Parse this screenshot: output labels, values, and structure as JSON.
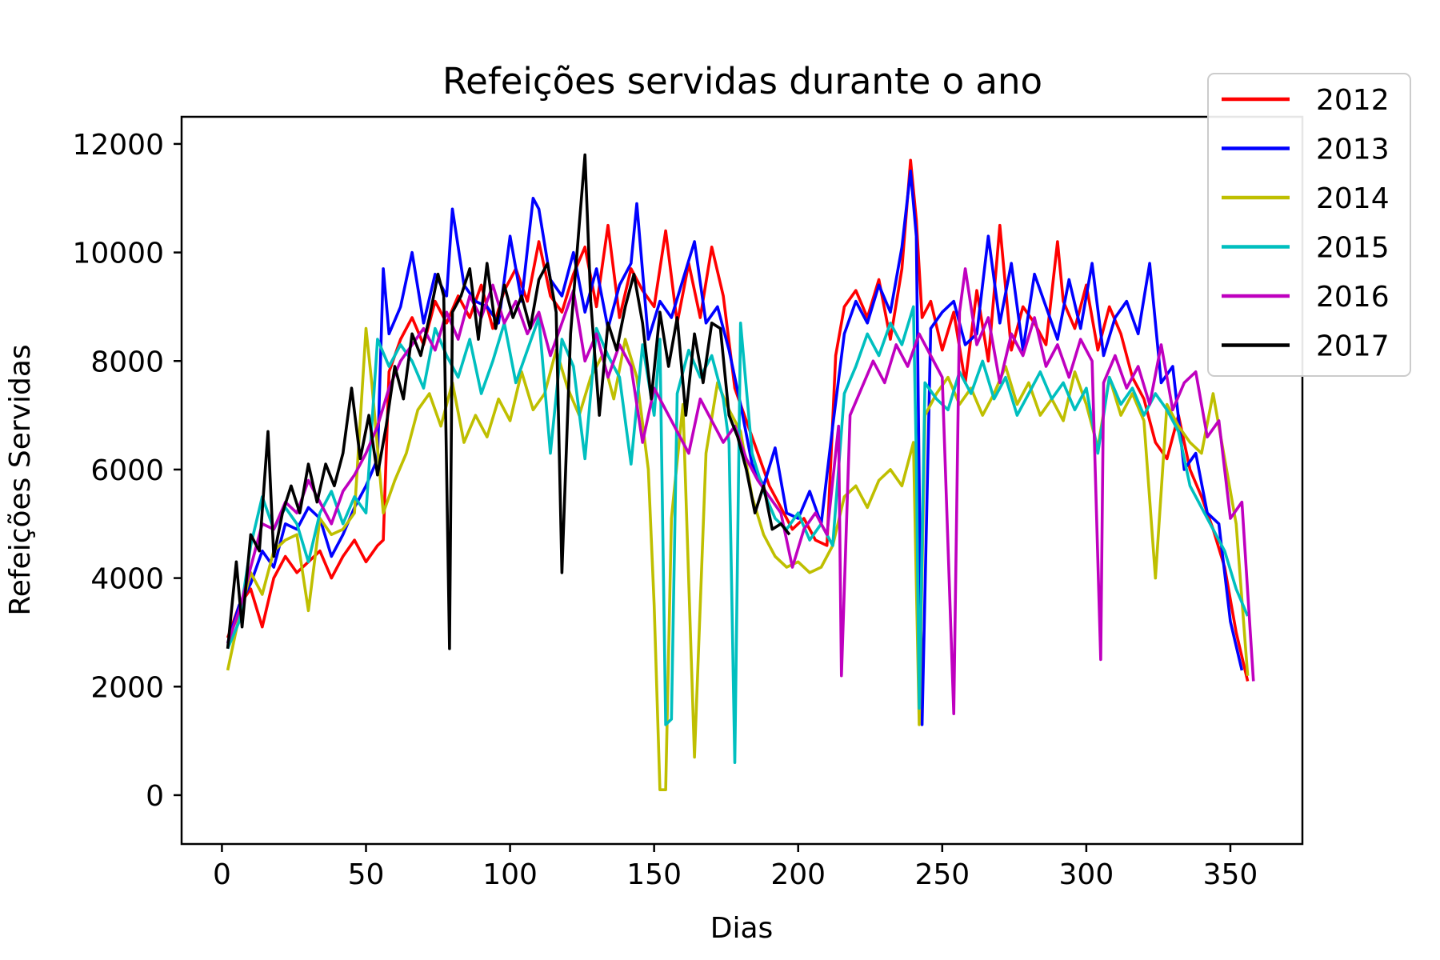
{
  "chart_data": {
    "type": "line",
    "title": "Refeições servidas durante o ano",
    "xlabel": "Dias",
    "ylabel": "Refeições Servidas",
    "xlim": [
      -14,
      375
    ],
    "ylim": [
      -900,
      12500
    ],
    "xticks": [
      0,
      50,
      100,
      150,
      200,
      250,
      300,
      350
    ],
    "yticks": [
      0,
      2000,
      4000,
      6000,
      8000,
      10000,
      12000
    ],
    "grid": false,
    "legend_position": "top-right",
    "series": [
      {
        "name": "2012",
        "color": "#ff0000",
        "x": [
          2,
          6,
          10,
          14,
          18,
          22,
          26,
          30,
          34,
          38,
          42,
          46,
          50,
          54,
          56,
          58,
          62,
          66,
          70,
          74,
          78,
          82,
          86,
          90,
          94,
          98,
          102,
          106,
          110,
          114,
          118,
          122,
          126,
          130,
          134,
          138,
          142,
          146,
          150,
          154,
          158,
          162,
          166,
          170,
          174,
          178,
          182,
          186,
          190,
          194,
          198,
          202,
          206,
          210,
          213,
          216,
          220,
          224,
          228,
          232,
          236,
          239,
          241,
          243,
          246,
          250,
          254,
          258,
          262,
          266,
          270,
          274,
          278,
          282,
          286,
          290,
          292,
          296,
          300,
          304,
          308,
          312,
          316,
          320,
          324,
          328,
          332,
          336,
          340,
          344,
          348,
          352,
          356
        ],
        "y": [
          2900,
          3500,
          3800,
          3100,
          4000,
          4400,
          4100,
          4300,
          4500,
          4000,
          4400,
          4700,
          4300,
          4600,
          4700,
          7800,
          8400,
          8800,
          8300,
          9100,
          8700,
          9200,
          8800,
          9400,
          8600,
          9300,
          9700,
          9100,
          10200,
          9200,
          8900,
          9600,
          10100,
          9000,
          10500,
          8800,
          9700,
          9300,
          9000,
          10400,
          8700,
          9800,
          8800,
          10100,
          9200,
          7500,
          6900,
          6300,
          5700,
          5300,
          4900,
          5100,
          4700,
          4600,
          8100,
          9000,
          9300,
          8800,
          9500,
          8400,
          9700,
          11700,
          10600,
          8800,
          9100,
          8200,
          8900,
          7600,
          9300,
          8000,
          10500,
          8200,
          9000,
          8700,
          8300,
          10200,
          9100,
          8600,
          9400,
          8200,
          9000,
          8500,
          7700,
          7300,
          6500,
          6200,
          7000,
          6000,
          5500,
          4900,
          4200,
          3000,
          2100
        ]
      },
      {
        "name": "2013",
        "color": "#0000ff",
        "x": [
          2,
          6,
          10,
          14,
          18,
          22,
          26,
          30,
          34,
          38,
          42,
          46,
          50,
          54,
          56,
          58,
          62,
          66,
          70,
          74,
          78,
          80,
          84,
          88,
          92,
          96,
          100,
          104,
          108,
          110,
          114,
          118,
          122,
          126,
          130,
          134,
          138,
          142,
          144,
          148,
          152,
          156,
          160,
          164,
          168,
          172,
          176,
          180,
          184,
          188,
          192,
          196,
          200,
          204,
          208,
          212,
          216,
          220,
          224,
          228,
          232,
          236,
          239,
          241,
          243,
          246,
          250,
          254,
          258,
          262,
          266,
          270,
          274,
          278,
          282,
          286,
          290,
          294,
          298,
          302,
          306,
          310,
          314,
          318,
          322,
          326,
          330,
          334,
          338,
          342,
          346,
          350,
          354
        ],
        "y": [
          2800,
          3500,
          3900,
          4500,
          4200,
          5000,
          4900,
          5300,
          5100,
          4400,
          4800,
          5300,
          5700,
          6200,
          9700,
          8500,
          9000,
          10000,
          8700,
          9600,
          9200,
          10800,
          9400,
          9100,
          9000,
          8700,
          10300,
          9100,
          11000,
          10800,
          9500,
          9200,
          10000,
          8900,
          9700,
          8600,
          9400,
          9800,
          10900,
          8400,
          9100,
          8800,
          9500,
          10200,
          8700,
          9000,
          8200,
          7200,
          6100,
          5700,
          6400,
          5200,
          5100,
          5600,
          5000,
          6800,
          8500,
          9100,
          8700,
          9400,
          8900,
          10100,
          11500,
          10300,
          1300,
          8600,
          8900,
          9100,
          8300,
          8500,
          10300,
          8700,
          9800,
          8200,
          9600,
          9000,
          8400,
          9500,
          8600,
          9800,
          8100,
          8800,
          9100,
          8500,
          9800,
          7600,
          7900,
          6000,
          6300,
          5200,
          5000,
          3200,
          2300
        ]
      },
      {
        "name": "2014",
        "color": "#bfbf00",
        "x": [
          2,
          6,
          10,
          14,
          18,
          22,
          26,
          30,
          34,
          38,
          42,
          46,
          50,
          52,
          54,
          56,
          60,
          64,
          68,
          72,
          76,
          80,
          84,
          88,
          92,
          96,
          100,
          104,
          108,
          112,
          116,
          120,
          124,
          128,
          132,
          136,
          140,
          144,
          148,
          150,
          152,
          154,
          156,
          160,
          164,
          168,
          172,
          176,
          180,
          184,
          188,
          192,
          196,
          200,
          204,
          208,
          212,
          216,
          220,
          224,
          228,
          232,
          236,
          240,
          242,
          244,
          248,
          252,
          256,
          260,
          264,
          268,
          272,
          276,
          280,
          284,
          288,
          292,
          296,
          300,
          304,
          308,
          312,
          316,
          320,
          324,
          328,
          332,
          336,
          340,
          344,
          348,
          352,
          356
        ],
        "y": [
          2300,
          3300,
          4100,
          3700,
          4500,
          4700,
          4800,
          3400,
          5100,
          4800,
          4900,
          5200,
          8600,
          7600,
          6400,
          5200,
          5800,
          6300,
          7100,
          7400,
          6800,
          7600,
          6500,
          7000,
          6600,
          7300,
          6900,
          7800,
          7100,
          7400,
          8200,
          7500,
          7000,
          7700,
          8100,
          7300,
          8400,
          7700,
          6000,
          3500,
          100,
          100,
          5100,
          7200,
          700,
          6300,
          7600,
          7100,
          6700,
          5500,
          4800,
          4400,
          4200,
          4300,
          4100,
          4200,
          4600,
          5500,
          5700,
          5300,
          5800,
          6000,
          5700,
          6500,
          1300,
          7000,
          7400,
          7700,
          7200,
          7500,
          7000,
          7400,
          7900,
          7200,
          7600,
          7000,
          7300,
          6900,
          7800,
          7200,
          6400,
          7700,
          7000,
          7400,
          6900,
          4000,
          7200,
          6800,
          6500,
          6300,
          7400,
          6200,
          5000,
          2200
        ]
      },
      {
        "name": "2015",
        "color": "#00bfbf",
        "x": [
          2,
          6,
          10,
          14,
          18,
          22,
          26,
          30,
          34,
          38,
          42,
          46,
          50,
          54,
          58,
          62,
          66,
          70,
          74,
          78,
          82,
          86,
          90,
          94,
          98,
          102,
          106,
          110,
          114,
          118,
          122,
          126,
          130,
          134,
          138,
          142,
          146,
          150,
          152,
          154,
          156,
          158,
          162,
          166,
          170,
          174,
          176,
          178,
          180,
          184,
          188,
          192,
          196,
          200,
          204,
          208,
          212,
          216,
          220,
          224,
          228,
          232,
          236,
          240,
          241,
          242,
          244,
          248,
          252,
          256,
          260,
          264,
          268,
          272,
          276,
          280,
          284,
          288,
          292,
          296,
          300,
          304,
          308,
          312,
          316,
          320,
          324,
          328,
          332,
          336,
          340,
          344,
          348,
          352,
          356
        ],
        "y": [
          2700,
          3200,
          4600,
          5500,
          4900,
          5300,
          5000,
          4300,
          5200,
          5600,
          5000,
          5500,
          5200,
          8400,
          7900,
          8300,
          8000,
          7500,
          8600,
          8100,
          7700,
          8400,
          7400,
          8000,
          8700,
          7600,
          8200,
          8800,
          6300,
          8400,
          7900,
          6200,
          8600,
          8100,
          7700,
          6100,
          8300,
          7000,
          8400,
          1300,
          1400,
          7400,
          8200,
          7700,
          8100,
          7300,
          6500,
          600,
          8700,
          6300,
          5600,
          5100,
          4900,
          5200,
          4700,
          5000,
          4600,
          7400,
          7900,
          8500,
          8100,
          8700,
          8300,
          9000,
          6200,
          1600,
          7600,
          7300,
          7100,
          7800,
          7400,
          8000,
          7300,
          7700,
          7000,
          7400,
          7800,
          7300,
          7600,
          7100,
          7500,
          6300,
          7700,
          7200,
          7500,
          7000,
          7400,
          7100,
          6700,
          5700,
          5300,
          4900,
          4500,
          3800,
          3300
        ]
      },
      {
        "name": "2016",
        "color": "#bf00bf",
        "x": [
          2,
          6,
          10,
          14,
          18,
          22,
          26,
          30,
          34,
          38,
          42,
          46,
          50,
          54,
          58,
          62,
          66,
          70,
          74,
          78,
          82,
          86,
          90,
          94,
          98,
          102,
          106,
          110,
          114,
          118,
          122,
          126,
          130,
          134,
          138,
          142,
          146,
          150,
          154,
          158,
          162,
          166,
          170,
          174,
          178,
          182,
          186,
          190,
          194,
          198,
          202,
          206,
          210,
          214,
          215,
          218,
          222,
          226,
          230,
          234,
          238,
          242,
          246,
          250,
          254,
          256,
          258,
          262,
          266,
          270,
          274,
          278,
          282,
          286,
          290,
          294,
          298,
          302,
          305,
          306,
          310,
          314,
          318,
          322,
          326,
          330,
          334,
          338,
          342,
          346,
          350,
          354,
          358
        ],
        "y": [
          2800,
          3400,
          4200,
          5000,
          4900,
          5400,
          5200,
          5800,
          5400,
          5000,
          5600,
          5900,
          6300,
          6800,
          7500,
          8000,
          8300,
          8600,
          8200,
          8900,
          8400,
          9200,
          8800,
          9400,
          8700,
          9100,
          8500,
          8900,
          8100,
          8700,
          9300,
          8000,
          8500,
          7700,
          8300,
          7900,
          6500,
          7500,
          7100,
          6700,
          6300,
          7300,
          6900,
          6500,
          6800,
          6200,
          5800,
          5500,
          5200,
          4200,
          4900,
          5200,
          4800,
          6800,
          2200,
          7000,
          7500,
          8000,
          7600,
          8300,
          7900,
          8500,
          8100,
          7700,
          1500,
          8900,
          9700,
          8300,
          8800,
          7600,
          8500,
          8100,
          8800,
          7900,
          8300,
          7700,
          8400,
          8000,
          2500,
          7600,
          8100,
          7500,
          7900,
          7200,
          8300,
          7100,
          7600,
          7800,
          6600,
          6900,
          5100,
          5400,
          2100
        ]
      },
      {
        "name": "2017",
        "color": "#000000",
        "x": [
          2,
          5,
          7,
          10,
          13,
          16,
          18,
          21,
          24,
          27,
          30,
          33,
          36,
          39,
          42,
          45,
          48,
          51,
          54,
          57,
          60,
          63,
          66,
          69,
          72,
          75,
          77,
          79,
          80,
          83,
          86,
          89,
          92,
          95,
          98,
          101,
          104,
          107,
          110,
          113,
          116,
          118,
          121,
          124,
          126,
          128,
          131,
          134,
          137,
          140,
          143,
          146,
          149,
          152,
          155,
          158,
          161,
          164,
          167,
          170,
          173,
          176,
          179,
          182,
          185,
          188,
          191,
          194,
          197
        ],
        "y": [
          2700,
          4300,
          3100,
          4800,
          4500,
          6700,
          4400,
          5200,
          5700,
          5200,
          6100,
          5400,
          6100,
          5700,
          6300,
          7500,
          6200,
          7000,
          5900,
          6800,
          7900,
          7300,
          8500,
          8100,
          8800,
          9600,
          9200,
          2700,
          8900,
          9200,
          9700,
          8400,
          9800,
          8600,
          9400,
          8800,
          9200,
          8600,
          9500,
          9800,
          8900,
          4100,
          8500,
          10500,
          11800,
          9100,
          7000,
          8700,
          8200,
          9000,
          9600,
          8700,
          7300,
          8900,
          7900,
          8800,
          7000,
          8500,
          7600,
          8700,
          8600,
          7000,
          6600,
          6000,
          5200,
          5700,
          4900,
          5000,
          4800
        ]
      }
    ]
  }
}
